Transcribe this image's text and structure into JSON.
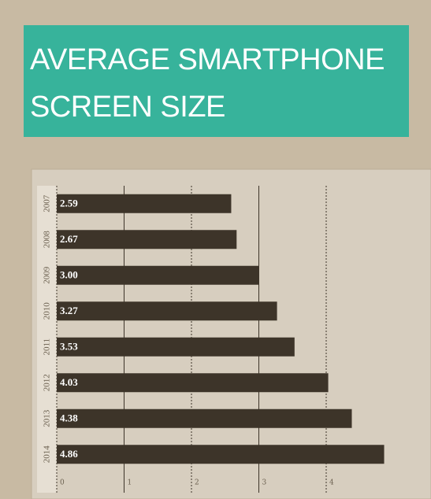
{
  "chart_data": {
    "type": "barh",
    "title": "AVERAGE SMARTPHONE SCREEN SIZE",
    "categories": [
      "2007",
      "2008",
      "2009",
      "2010",
      "2011",
      "2012",
      "2013",
      "2014"
    ],
    "values": [
      2.59,
      2.67,
      3.0,
      3.27,
      3.53,
      4.03,
      4.38,
      4.86
    ],
    "value_labels": [
      "2.59",
      "2.67",
      "3.00",
      "3.27",
      "3.53",
      "4.03",
      "4.38",
      "4.86"
    ],
    "color": "#3d3429",
    "xlim": [
      0,
      5
    ],
    "xticks": [
      0,
      1,
      2,
      3,
      4
    ],
    "grid": true
  }
}
